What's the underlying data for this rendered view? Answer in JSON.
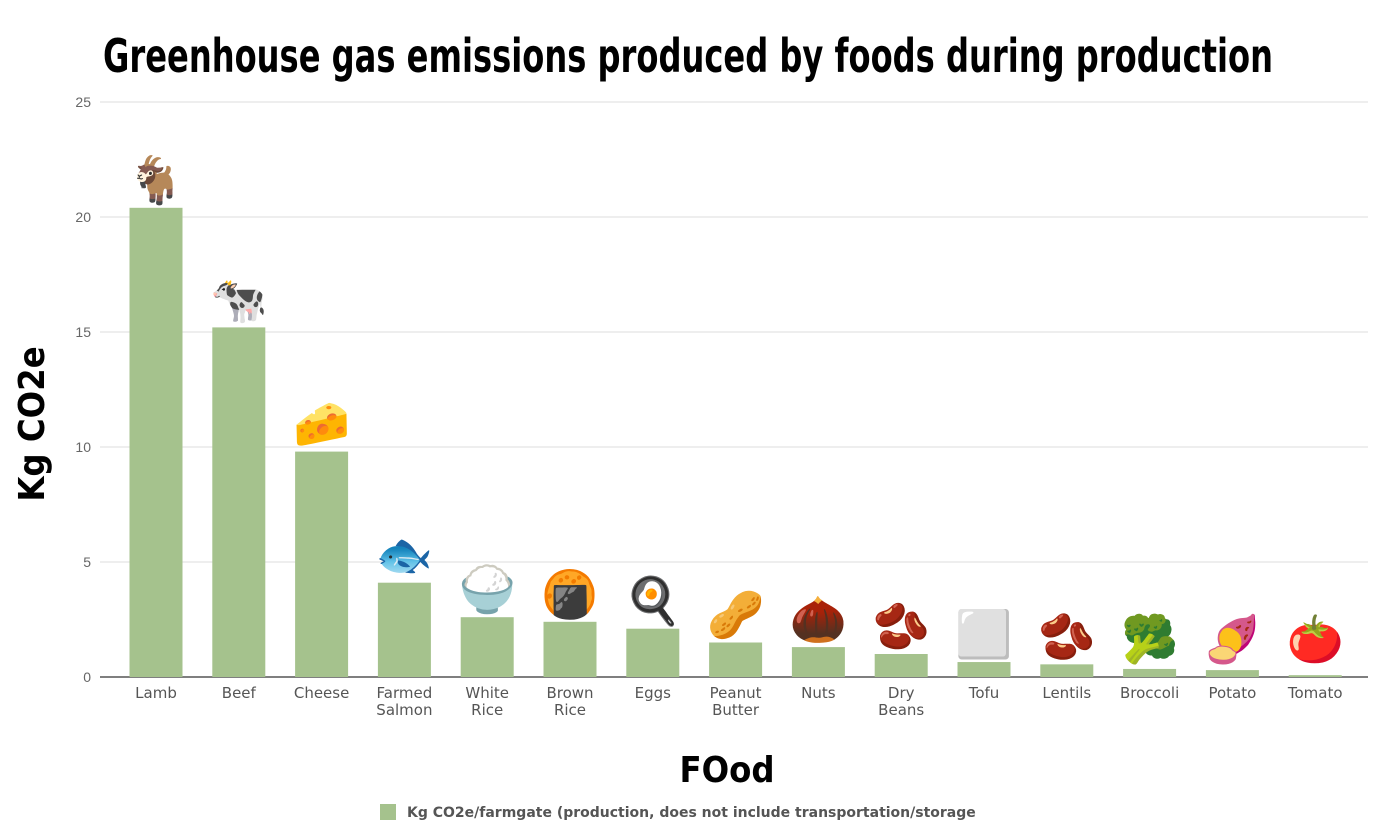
{
  "chart_data": {
    "type": "bar",
    "title": "Greenhouse gas emissions produced by foods during production",
    "xlabel": "FOod",
    "ylabel": "Kg CO2e",
    "ylim": [
      0,
      25
    ],
    "yticks": [
      "0",
      "5",
      "10",
      "15",
      "20",
      "25"
    ],
    "grid": true,
    "legend_placement": "bottom",
    "bar_color": "#a5c28d",
    "series": [
      {
        "name": "Kg CO2e/farmgate (production, does not include transportation/storage",
        "values": [
          20.4,
          15.2,
          9.8,
          4.1,
          2.6,
          2.4,
          2.1,
          1.5,
          1.3,
          1.0,
          0.65,
          0.55,
          0.35,
          0.3,
          0.08
        ]
      }
    ],
    "categories": [
      {
        "lines": [
          "Lamb"
        ],
        "icon": "goat-icon",
        "glyph": "🐐"
      },
      {
        "lines": [
          "Beef"
        ],
        "icon": "cow-icon",
        "glyph": "🐄"
      },
      {
        "lines": [
          "Cheese"
        ],
        "icon": "cheese-icon",
        "glyph": "🧀"
      },
      {
        "lines": [
          "Farmed",
          "Salmon"
        ],
        "icon": "fish-icon",
        "glyph": "🐟"
      },
      {
        "lines": [
          "White",
          "Rice"
        ],
        "icon": "rice-bowl-icon",
        "glyph": "🍚"
      },
      {
        "lines": [
          "Brown",
          "Rice"
        ],
        "icon": "rice-cracker-icon",
        "glyph": "🍘"
      },
      {
        "lines": [
          "Eggs"
        ],
        "icon": "fried-egg-icon",
        "glyph": "🍳"
      },
      {
        "lines": [
          "Peanut",
          "Butter"
        ],
        "icon": "peanut-icon",
        "glyph": "🥜"
      },
      {
        "lines": [
          "Nuts"
        ],
        "icon": "walnut-icon",
        "glyph": "🌰"
      },
      {
        "lines": [
          "Dry",
          "Beans"
        ],
        "icon": "bean-bag-icon",
        "glyph": "🫘"
      },
      {
        "lines": [
          "Tofu"
        ],
        "icon": "tofu-icon",
        "glyph": "⬜"
      },
      {
        "lines": [
          "Lentils"
        ],
        "icon": "lentil-icon",
        "glyph": "🫘"
      },
      {
        "lines": [
          "Broccoli"
        ],
        "icon": "broccoli-icon",
        "glyph": "🥦"
      },
      {
        "lines": [
          "Potato"
        ],
        "icon": "sweet-potato-icon",
        "glyph": "🍠"
      },
      {
        "lines": [
          "Tomato"
        ],
        "icon": "tomato-icon",
        "glyph": "🍅"
      }
    ]
  }
}
